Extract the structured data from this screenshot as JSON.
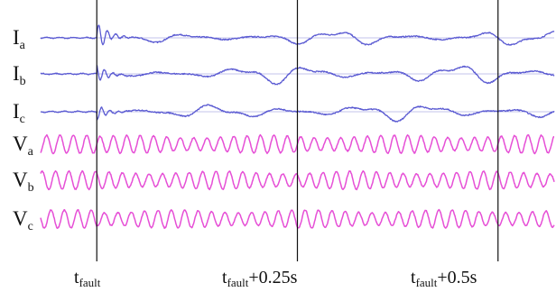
{
  "chart_data": {
    "type": "line",
    "title": "",
    "xlabel": "",
    "ylabel": "",
    "grid": false,
    "colors": {
      "current": "#5a5ad2",
      "voltage": "#e64fd6",
      "baseline": "#8c8cd8",
      "marker": "#111111"
    },
    "x_markers": [
      {
        "base": "t",
        "sub": "fault",
        "suffix": "",
        "t": 0.0
      },
      {
        "base": "t",
        "sub": "fault",
        "suffix": "+0.25s",
        "t": 0.25
      },
      {
        "base": "t",
        "sub": "fault",
        "suffix": "+0.5s",
        "t": 0.5
      }
    ],
    "xlim": [
      -0.07,
      0.57
    ],
    "series": [
      {
        "name": "I",
        "sub": "a",
        "kind": "current",
        "pre_fault_amplitude": 0.05,
        "fault_transient_amplitude": 1.0,
        "post_fault_amplitude": 0.8
      },
      {
        "name": "I",
        "sub": "b",
        "kind": "current",
        "pre_fault_amplitude": 0.05,
        "fault_transient_amplitude": 0.6,
        "post_fault_amplitude": 1.0
      },
      {
        "name": "I",
        "sub": "c",
        "kind": "current",
        "pre_fault_amplitude": 0.05,
        "fault_transient_amplitude": 0.5,
        "post_fault_amplitude": 0.9
      },
      {
        "name": "V",
        "sub": "a",
        "kind": "voltage",
        "pre_fault_amplitude": 1.0,
        "fault_transient_amplitude": 1.0,
        "post_fault_amplitude": 0.85
      },
      {
        "name": "V",
        "sub": "b",
        "kind": "voltage",
        "pre_fault_amplitude": 1.0,
        "fault_transient_amplitude": 1.0,
        "post_fault_amplitude": 0.85
      },
      {
        "name": "V",
        "sub": "c",
        "kind": "voltage",
        "pre_fault_amplitude": 1.0,
        "fault_transient_amplitude": 1.0,
        "post_fault_amplitude": 0.85
      }
    ]
  }
}
